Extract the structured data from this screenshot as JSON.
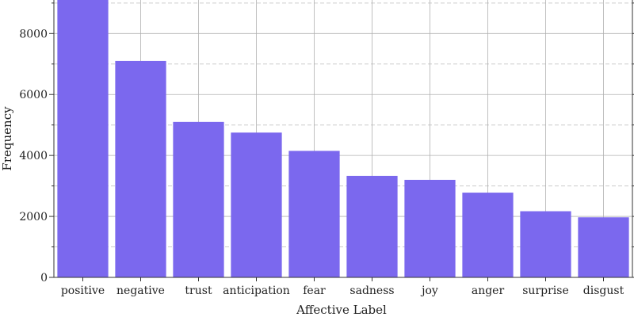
{
  "chart_data": {
    "type": "bar",
    "title": "",
    "xlabel": "Affective Label",
    "ylabel": "Frequency",
    "categories": [
      "positive",
      "negative",
      "trust",
      "anticipation",
      "fear",
      "sadness",
      "joy",
      "anger",
      "surprise",
      "disgust"
    ],
    "values": [
      9700,
      7100,
      5100,
      4750,
      4150,
      3330,
      3200,
      2780,
      2170,
      1970
    ],
    "ylim": [
      0,
      9100
    ],
    "yticks": [
      0,
      2000,
      4000,
      6000,
      8000
    ],
    "ytick_labels": [
      "0",
      "2000",
      "4000",
      "6000",
      "8000"
    ],
    "grid_major": true,
    "grid_minor": true,
    "legend": "none",
    "colors": {
      "bar": "#7b68ee",
      "grid_major": "#b0b0b0",
      "grid_minor": "#cccccc",
      "axis": "#333333"
    }
  }
}
